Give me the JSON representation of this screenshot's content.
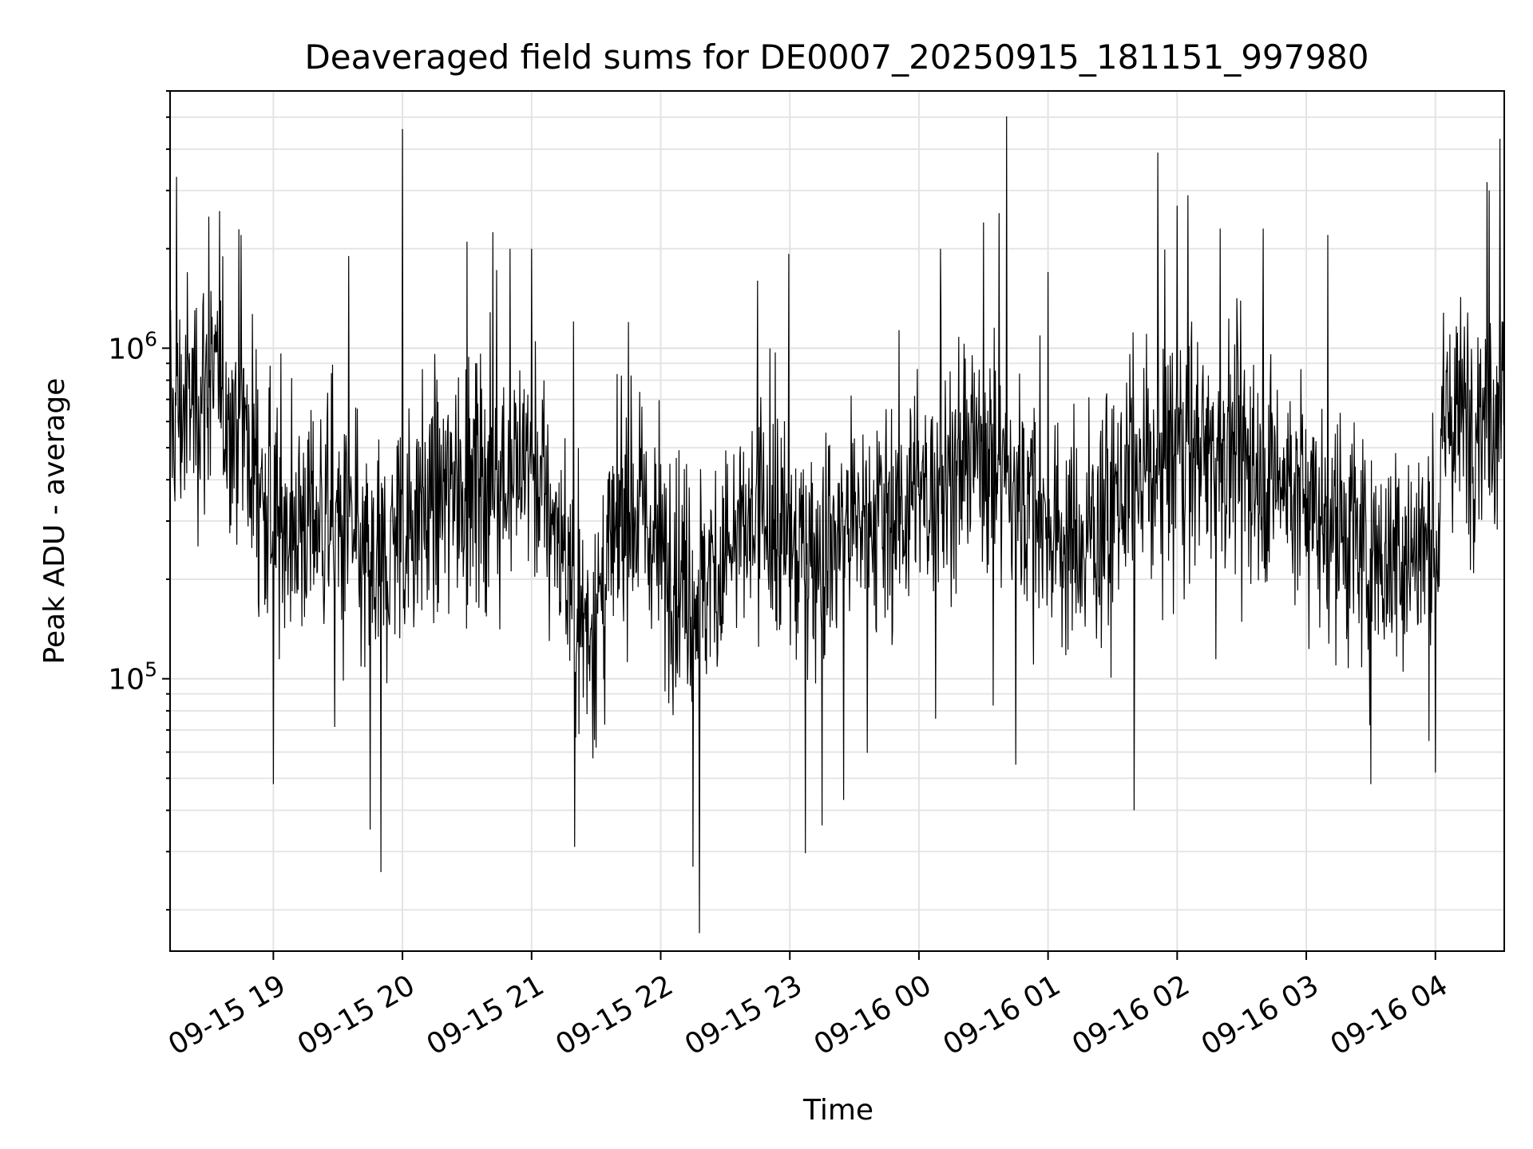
{
  "chart_data": {
    "type": "line",
    "title": "Deaveraged field sums for DE0007_20250915_181151_997980",
    "xlabel": "Time",
    "ylabel": "Peak ADU - average",
    "yscale": "log",
    "ylim": [
      15000,
      6000000
    ],
    "xlim": [
      "2025-09-15 18:12",
      "2025-09-16 04:32"
    ],
    "grid": true,
    "x_ticks": [
      "09-15 19",
      "09-15 20",
      "09-15 21",
      "09-15 22",
      "09-15 23",
      "09-16 00",
      "09-16 01",
      "09-16 02",
      "09-16 03",
      "09-16 04"
    ],
    "y_ticks": [
      {
        "value": 100000,
        "base": "10",
        "exp": "5"
      },
      {
        "value": 1000000,
        "base": "10",
        "exp": "6"
      }
    ],
    "series": [
      {
        "color": "#000000",
        "anchors": [
          {
            "t": "2025-09-15 18:12",
            "v": 600000
          },
          {
            "t": "2025-09-15 18:30",
            "v": 800000
          },
          {
            "t": "2025-09-15 18:45",
            "v": 600000
          },
          {
            "t": "2025-09-15 19:00",
            "v": 300000
          },
          {
            "t": "2025-09-15 19:30",
            "v": 300000
          },
          {
            "t": "2025-09-15 19:45",
            "v": 200000
          },
          {
            "t": "2025-09-15 20:00",
            "v": 300000
          },
          {
            "t": "2025-09-15 20:30",
            "v": 400000
          },
          {
            "t": "2025-09-15 21:00",
            "v": 450000
          },
          {
            "t": "2025-09-15 21:15",
            "v": 250000
          },
          {
            "t": "2025-09-15 21:20",
            "v": 150000
          },
          {
            "t": "2025-09-15 21:30",
            "v": 150000
          },
          {
            "t": "2025-09-15 21:45",
            "v": 350000
          },
          {
            "t": "2025-09-15 22:00",
            "v": 250000
          },
          {
            "t": "2025-09-15 22:15",
            "v": 180000
          },
          {
            "t": "2025-09-15 22:45",
            "v": 300000
          },
          {
            "t": "2025-09-15 23:00",
            "v": 250000
          },
          {
            "t": "2025-09-15 23:15",
            "v": 250000
          },
          {
            "t": "2025-09-15 23:30",
            "v": 300000
          },
          {
            "t": "2025-09-16 00:00",
            "v": 350000
          },
          {
            "t": "2025-09-16 00:30",
            "v": 500000
          },
          {
            "t": "2025-09-16 01:00",
            "v": 300000
          },
          {
            "t": "2025-09-16 01:15",
            "v": 250000
          },
          {
            "t": "2025-09-16 01:30",
            "v": 350000
          },
          {
            "t": "2025-09-16 02:00",
            "v": 500000
          },
          {
            "t": "2025-09-16 02:30",
            "v": 500000
          },
          {
            "t": "2025-09-16 03:00",
            "v": 350000
          },
          {
            "t": "2025-09-16 03:30",
            "v": 230000
          },
          {
            "t": "2025-09-16 04:00",
            "v": 250000
          },
          {
            "t": "2025-09-16 04:05",
            "v": 600000
          },
          {
            "t": "2025-09-16 04:32",
            "v": 700000
          }
        ],
        "spikes": [
          {
            "t": "2025-09-15 18:15",
            "v": 3300000
          },
          {
            "t": "2025-09-15 18:30",
            "v": 2500000
          },
          {
            "t": "2025-09-15 18:35",
            "v": 2600000
          },
          {
            "t": "2025-09-15 18:45",
            "v": 2200000
          },
          {
            "t": "2025-09-15 19:00",
            "v": 48000
          },
          {
            "t": "2025-09-15 19:35",
            "v": 1900000
          },
          {
            "t": "2025-09-15 19:45",
            "v": 35000
          },
          {
            "t": "2025-09-15 19:50",
            "v": 26000
          },
          {
            "t": "2025-09-15 20:00",
            "v": 4600000
          },
          {
            "t": "2025-09-15 20:30",
            "v": 2100000
          },
          {
            "t": "2025-09-15 20:50",
            "v": 2000000
          },
          {
            "t": "2025-09-15 21:00",
            "v": 2000000
          },
          {
            "t": "2025-09-15 21:20",
            "v": 31000
          },
          {
            "t": "2025-09-15 21:45",
            "v": 1200000
          },
          {
            "t": "2025-09-15 22:15",
            "v": 27000
          },
          {
            "t": "2025-09-15 22:18",
            "v": 17000
          },
          {
            "t": "2025-09-15 22:45",
            "v": 1600000
          },
          {
            "t": "2025-09-15 23:15",
            "v": 36000
          },
          {
            "t": "2025-09-15 23:25",
            "v": 43000
          },
          {
            "t": "2025-09-16 00:10",
            "v": 2000000
          },
          {
            "t": "2025-09-16 00:30",
            "v": 2400000
          },
          {
            "t": "2025-09-16 00:45",
            "v": 55000
          },
          {
            "t": "2025-09-16 01:00",
            "v": 1700000
          },
          {
            "t": "2025-09-16 01:40",
            "v": 40000
          },
          {
            "t": "2025-09-16 02:00",
            "v": 2700000
          },
          {
            "t": "2025-09-16 02:05",
            "v": 2900000
          },
          {
            "t": "2025-09-16 02:20",
            "v": 2300000
          },
          {
            "t": "2025-09-16 02:40",
            "v": 2300000
          },
          {
            "t": "2025-09-16 03:10",
            "v": 2200000
          },
          {
            "t": "2025-09-16 03:30",
            "v": 48000
          },
          {
            "t": "2025-09-16 04:00",
            "v": 52000
          },
          {
            "t": "2025-09-16 04:25",
            "v": 3000000
          },
          {
            "t": "2025-09-16 04:30",
            "v": 4300000
          }
        ],
        "point_interval_seconds": 15,
        "scatter_decades": 0.26
      }
    ]
  }
}
